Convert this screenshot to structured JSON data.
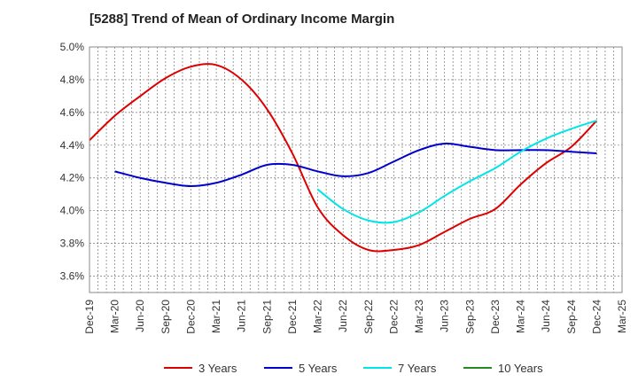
{
  "chart_data": {
    "type": "line",
    "title": "[5288]  Trend of Mean of Ordinary Income Margin",
    "xlabel": "",
    "ylabel": "",
    "x_ticks": [
      "Dec-19",
      "Mar-20",
      "Jun-20",
      "Sep-20",
      "Dec-20",
      "Mar-21",
      "Jun-21",
      "Sep-21",
      "Dec-21",
      "Mar-22",
      "Jun-22",
      "Sep-22",
      "Dec-22",
      "Mar-23",
      "Jun-23",
      "Sep-23",
      "Dec-23",
      "Mar-24",
      "Jun-24",
      "Sep-24",
      "Dec-24",
      "Mar-25"
    ],
    "y_ticks": [
      "3.6%",
      "3.8%",
      "4.0%",
      "4.2%",
      "4.4%",
      "4.6%",
      "4.8%",
      "5.0%"
    ],
    "y_tick_values": [
      3.6,
      3.8,
      4.0,
      4.2,
      4.4,
      4.6,
      4.8,
      5.0
    ],
    "ylim": [
      3.5,
      5.0
    ],
    "grid": true,
    "legend_position": "bottom",
    "series": [
      {
        "name": "3 Years",
        "color": "#dd0000",
        "x": [
          "Dec-19",
          "Mar-20",
          "Jun-20",
          "Sep-20",
          "Dec-20",
          "Mar-21",
          "Jun-21",
          "Sep-21",
          "Dec-21",
          "Mar-22",
          "Jun-22",
          "Sep-22",
          "Dec-22",
          "Mar-23",
          "Jun-23",
          "Sep-23",
          "Dec-23",
          "Mar-24",
          "Jun-24",
          "Sep-24",
          "Dec-24"
        ],
        "values": [
          4.43,
          4.58,
          4.7,
          4.81,
          4.88,
          4.89,
          4.8,
          4.62,
          4.35,
          4.02,
          3.85,
          3.76,
          3.76,
          3.79,
          3.87,
          3.95,
          4.01,
          4.16,
          4.29,
          4.39,
          4.55
        ]
      },
      {
        "name": "5 Years",
        "color": "#0000cc",
        "x": [
          "Dec-19",
          "Mar-20",
          "Jun-20",
          "Sep-20",
          "Dec-20",
          "Mar-21",
          "Jun-21",
          "Sep-21",
          "Dec-21",
          "Mar-22",
          "Jun-22",
          "Sep-22",
          "Dec-22",
          "Mar-23",
          "Jun-23",
          "Sep-23",
          "Dec-23",
          "Mar-24",
          "Jun-24",
          "Sep-24",
          "Dec-24"
        ],
        "values": [
          null,
          4.24,
          4.2,
          4.17,
          4.15,
          4.17,
          4.22,
          4.28,
          4.28,
          4.24,
          4.21,
          4.23,
          4.3,
          4.37,
          4.41,
          4.39,
          4.37,
          4.37,
          4.37,
          4.36,
          4.35
        ]
      },
      {
        "name": "7 Years",
        "color": "#00e5e5",
        "x": [
          "Dec-19",
          "Mar-20",
          "Jun-20",
          "Sep-20",
          "Dec-20",
          "Mar-21",
          "Jun-21",
          "Sep-21",
          "Dec-21",
          "Mar-22",
          "Jun-22",
          "Sep-22",
          "Dec-22",
          "Mar-23",
          "Jun-23",
          "Sep-23",
          "Dec-23",
          "Mar-24",
          "Jun-24",
          "Sep-24",
          "Dec-24"
        ],
        "values": [
          null,
          null,
          null,
          null,
          null,
          null,
          null,
          null,
          null,
          4.13,
          4.01,
          3.94,
          3.93,
          3.99,
          4.09,
          4.18,
          4.26,
          4.36,
          4.44,
          4.5,
          4.55
        ]
      },
      {
        "name": "10 Years",
        "color": "#228b22",
        "x": [],
        "values": []
      }
    ]
  }
}
